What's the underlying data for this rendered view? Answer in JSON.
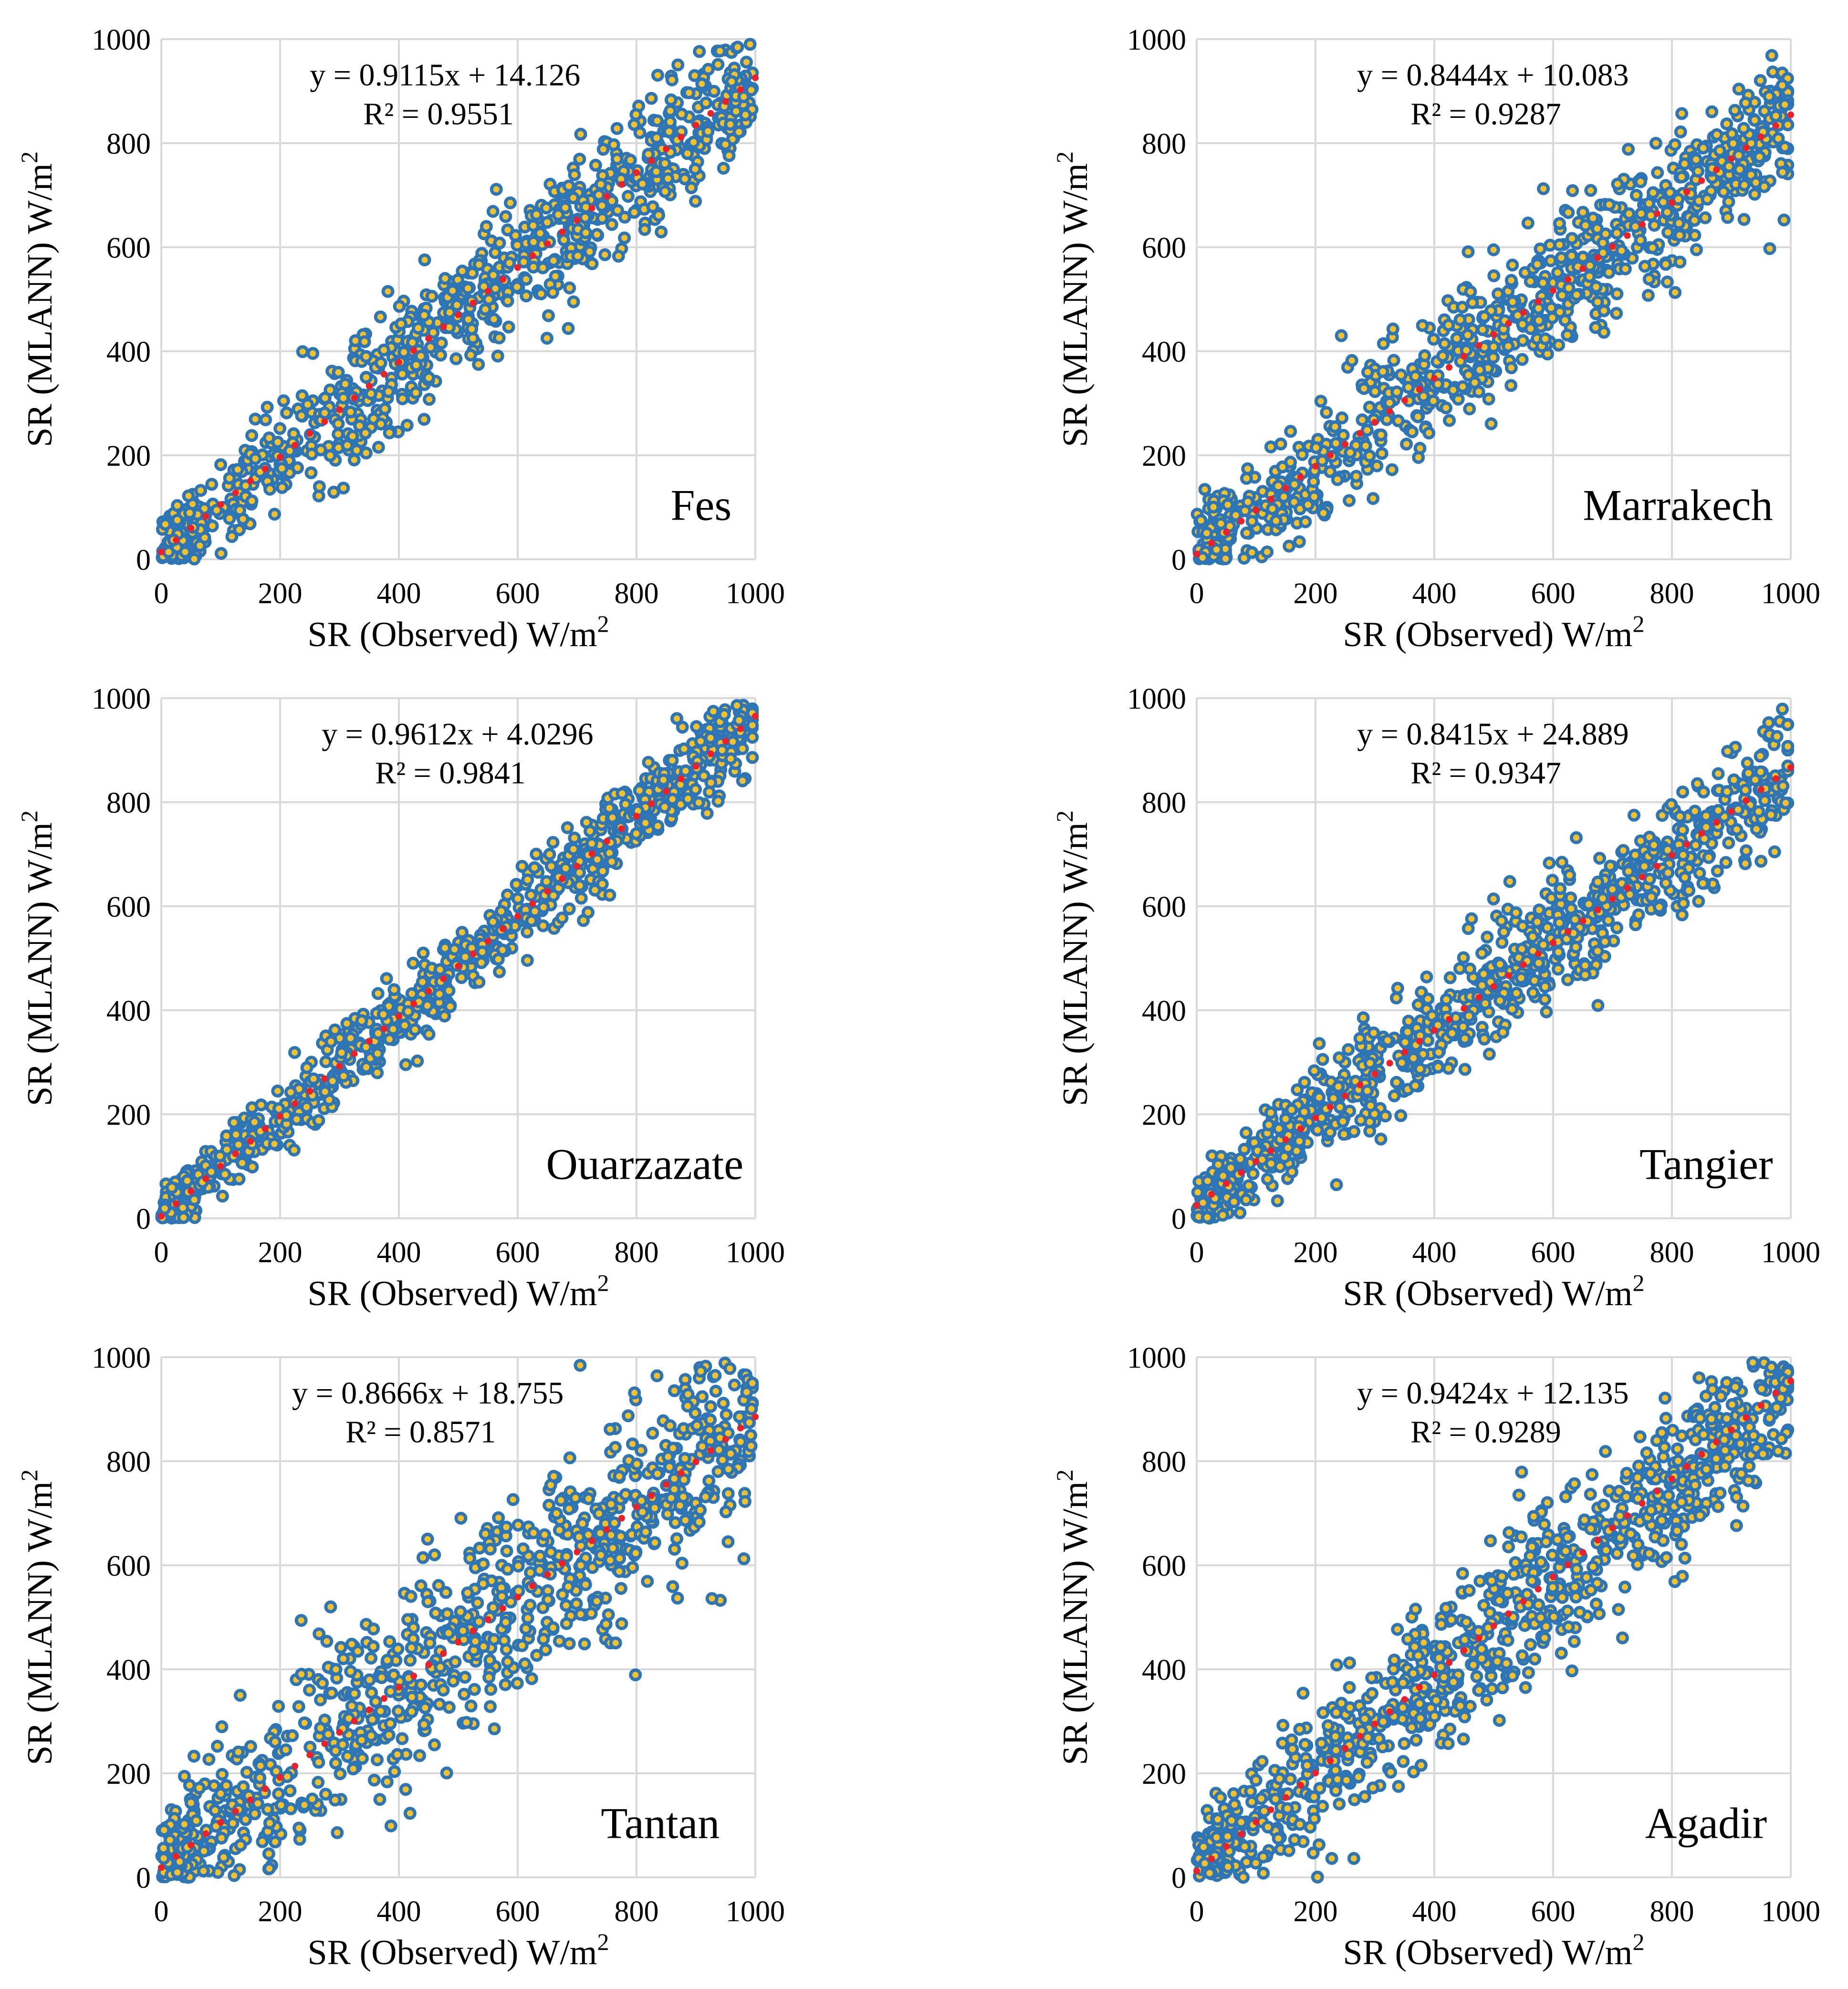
{
  "colors": {
    "marker_fill": "#f2c12e",
    "marker_edge": "#2e75b6",
    "trend": "#e8212a",
    "grid": "#d9d9d9"
  },
  "chart_data": [
    {
      "type": "scatter",
      "station": "Fes",
      "equation": "y = 0.9115x + 14.126",
      "r2": "R² = 0.9551",
      "slope": 0.9115,
      "intercept": 14.126,
      "scatter_sd": 62,
      "xlim": [
        0,
        1000
      ],
      "ylim": [
        0,
        1000
      ],
      "xticks": [
        "0",
        "200",
        "400",
        "600",
        "800",
        "1000"
      ],
      "yticks": [
        "0",
        "200",
        "400",
        "600",
        "800",
        "1000"
      ],
      "xlabel_main": "SR (Observed) W/m",
      "ylabel_main": "SR (MLANN) W/m",
      "unit_exp": "2"
    },
    {
      "type": "scatter",
      "station": "Marrakech",
      "equation": "y = 0.8444x + 10.083",
      "r2": "R² = 0.9287",
      "slope": 0.8444,
      "intercept": 10.083,
      "scatter_sd": 70,
      "xlim": [
        0,
        1000
      ],
      "ylim": [
        0,
        1000
      ],
      "xticks": [
        "0",
        "200",
        "400",
        "600",
        "800",
        "1000"
      ],
      "yticks": [
        "0",
        "200",
        "400",
        "600",
        "800",
        "1000"
      ],
      "xlabel_main": "SR (Observed) W/m",
      "ylabel_main": "SR (MLANN) W/m",
      "unit_exp": "2"
    },
    {
      "type": "scatter",
      "station": "Ouarzazate",
      "equation": "y = 0.9612x + 4.0296",
      "r2": "R² = 0.9841",
      "slope": 0.9612,
      "intercept": 4.0296,
      "scatter_sd": 40,
      "xlim": [
        0,
        1000
      ],
      "ylim": [
        0,
        1000
      ],
      "xticks": [
        "0",
        "200",
        "400",
        "600",
        "800",
        "1000"
      ],
      "yticks": [
        "0",
        "200",
        "400",
        "600",
        "800",
        "1000"
      ],
      "xlabel_main": "SR (Observed) W/m",
      "ylabel_main": "SR (MLANN) W/m",
      "unit_exp": "2"
    },
    {
      "type": "scatter",
      "station": "Tangier",
      "equation": "y = 0.8415x + 24.889",
      "r2": "R² = 0.9347",
      "slope": 0.8415,
      "intercept": 24.889,
      "scatter_sd": 55,
      "xlim": [
        0,
        1000
      ],
      "ylim": [
        0,
        1000
      ],
      "xticks": [
        "0",
        "200",
        "400",
        "600",
        "800",
        "1000"
      ],
      "yticks": [
        "0",
        "200",
        "400",
        "600",
        "800",
        "1000"
      ],
      "xlabel_main": "SR (Observed) W/m",
      "ylabel_main": "SR (MLANN) W/m",
      "unit_exp": "2"
    },
    {
      "type": "scatter",
      "station": "Tantan",
      "equation": "y = 0.8666x + 18.755",
      "r2": "R² = 0.8571",
      "slope": 0.8666,
      "intercept": 18.755,
      "scatter_sd": 95,
      "xlim": [
        0,
        1000
      ],
      "ylim": [
        0,
        1000
      ],
      "xticks": [
        "0",
        "200",
        "400",
        "600",
        "800",
        "1000"
      ],
      "yticks": [
        "0",
        "200",
        "400",
        "600",
        "800",
        "1000"
      ],
      "xlabel_main": "SR (Observed) W/m",
      "ylabel_main": "SR (MLANN) W/m",
      "unit_exp": "2"
    },
    {
      "type": "scatter",
      "station": "Agadir",
      "equation": "y = 0.9424x + 12.135",
      "r2": "R² = 0.9289",
      "slope": 0.9424,
      "intercept": 12.135,
      "scatter_sd": 80,
      "xlim": [
        0,
        1000
      ],
      "ylim": [
        0,
        1000
      ],
      "xticks": [
        "0",
        "200",
        "400",
        "600",
        "800",
        "1000"
      ],
      "yticks": [
        "0",
        "200",
        "400",
        "600",
        "800",
        "1000"
      ],
      "xlabel_main": "SR (Observed) W/m",
      "ylabel_main": "SR (MLANN) W/m",
      "unit_exp": "2"
    }
  ]
}
